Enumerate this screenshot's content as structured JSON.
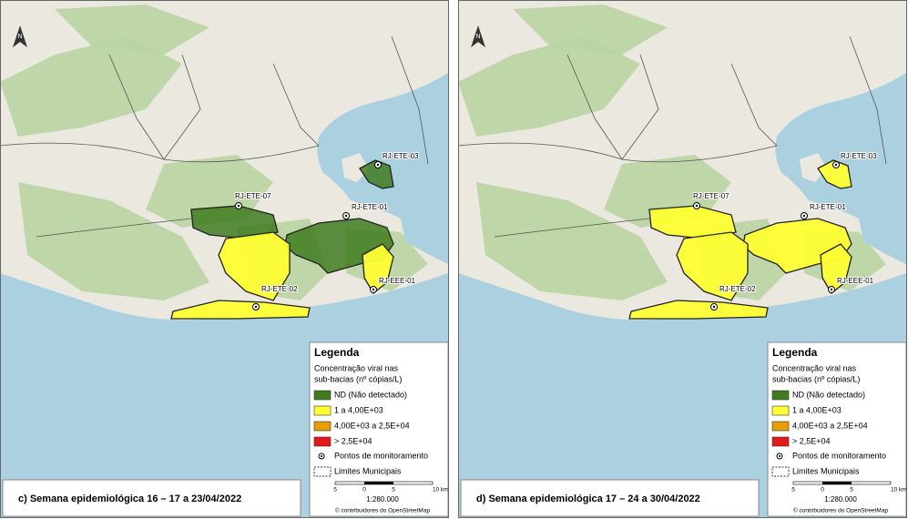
{
  "north": "N",
  "panels": [
    {
      "caption": "c) Semana epidemiológica 16 – 17 a 23/04/2022",
      "stations": [
        "RJ-ETE-03",
        "RJ-ETE-07",
        "RJ-ETE-01",
        "RJ-EEE-01",
        "RJ-ETE-02"
      ]
    },
    {
      "caption": "d) Semana epidemiológica 17 – 24 a 30/04/2022",
      "stations": [
        "RJ-ETE-03",
        "RJ-ETE-07",
        "RJ-ETE-01",
        "RJ-EEE-01",
        "RJ-ETE-02"
      ]
    }
  ],
  "legend": {
    "title": "Legenda",
    "subtitle": [
      "Concentração viral nas",
      "sub-bacias (nº cópias/L)"
    ],
    "items": [
      {
        "label": "ND (Não detectado)",
        "color": "#3f7d20"
      },
      {
        "label": "1 a 4,00E+03",
        "color": "#ffff33"
      },
      {
        "label": "4,00E+03 a 2,5E+04",
        "color": "#e69f00"
      },
      {
        "label": "> 2,5E+04",
        "color": "#e31a1c"
      }
    ],
    "points": "Pontos de monitoramento",
    "limits": "Limites Municipais"
  },
  "scale": {
    "ticks": [
      "5",
      "0",
      "5",
      "10 km"
    ],
    "ratio": "1:280.000",
    "credit": "© contribuidores do OpenStreetMap"
  }
}
